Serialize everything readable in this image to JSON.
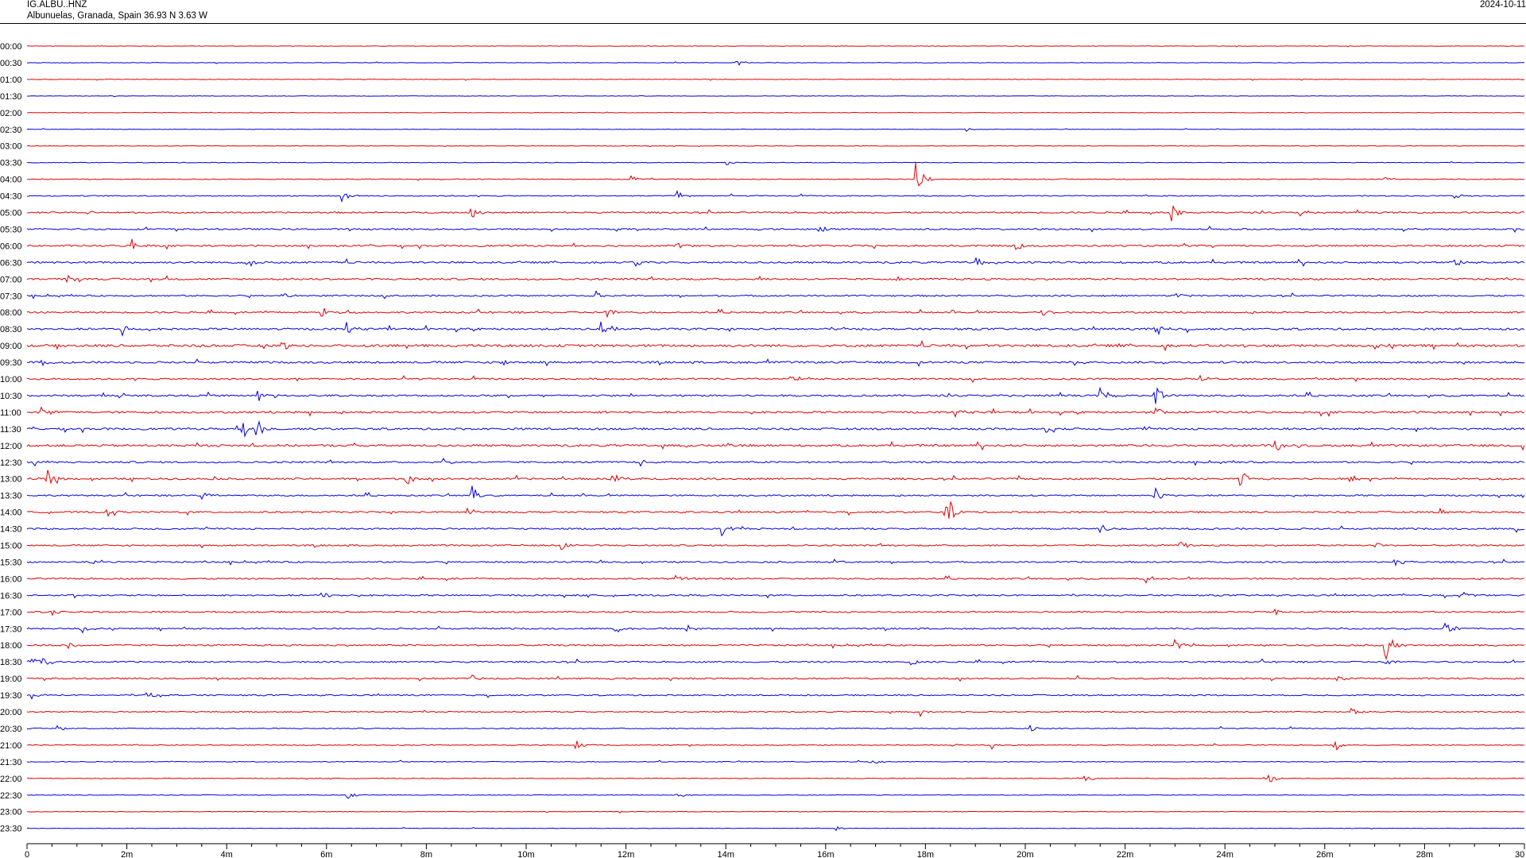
{
  "header": {
    "station": "IG.ALBU..HNZ",
    "location": "Albunuelas, Granada, Spain  36.93 N 3.63 W",
    "date": "2024-10-11"
  },
  "colors": {
    "even_trace": "#e00000",
    "odd_trace": "#0000e0",
    "axis": "#000000"
  },
  "chart_data": {
    "type": "line",
    "description_kind": "helicorder",
    "rows": [
      "00:00",
      "00:30",
      "01:00",
      "01:30",
      "02:00",
      "02:30",
      "03:00",
      "03:30",
      "04:00",
      "04:30",
      "05:00",
      "05:30",
      "06:00",
      "06:30",
      "07:00",
      "07:30",
      "08:00",
      "08:30",
      "09:00",
      "09:30",
      "10:00",
      "10:30",
      "11:00",
      "11:30",
      "12:00",
      "12:30",
      "13:00",
      "13:30",
      "14:00",
      "14:30",
      "15:00",
      "15:30",
      "16:00",
      "16:30",
      "17:00",
      "17:30",
      "18:00",
      "18:30",
      "19:00",
      "19:30",
      "20:00",
      "20:30",
      "21:00",
      "21:30",
      "22:00",
      "22:30",
      "23:00",
      "23:30"
    ],
    "x_ticks": [
      "0",
      "2m",
      "4m",
      "6m",
      "8m",
      "10m",
      "12m",
      "14m",
      "16m",
      "18m",
      "20m",
      "22m",
      "24m",
      "26m",
      "28m",
      "30"
    ],
    "xlim": [
      0,
      30
    ],
    "noise_level": [
      0.3,
      0.3,
      0.3,
      0.3,
      0.3,
      0.3,
      0.35,
      0.4,
      0.5,
      0.6,
      0.9,
      0.9,
      1.0,
      1.1,
      1.1,
      0.9,
      1.0,
      1.2,
      1.5,
      1.2,
      1.0,
      1.1,
      1.2,
      1.2,
      1.3,
      1.0,
      1.1,
      0.9,
      1.0,
      1.0,
      0.9,
      0.9,
      0.9,
      0.9,
      0.9,
      0.9,
      0.9,
      0.9,
      0.9,
      0.8,
      0.7,
      0.6,
      0.5,
      0.45,
      0.4,
      0.4,
      0.35,
      0.3
    ],
    "events": [
      {
        "row": 1,
        "t": 14.2,
        "amp": 6
      },
      {
        "row": 5,
        "t": 18.8,
        "amp": 3
      },
      {
        "row": 7,
        "t": 14.0,
        "amp": 4
      },
      {
        "row": 8,
        "t": 17.8,
        "amp": 26
      },
      {
        "row": 8,
        "t": 12.1,
        "amp": 6
      },
      {
        "row": 8,
        "t": 27.2,
        "amp": 4
      },
      {
        "row": 9,
        "t": 6.3,
        "amp": 8
      },
      {
        "row": 9,
        "t": 13.0,
        "amp": 7
      },
      {
        "row": 9,
        "t": 28.6,
        "amp": 5
      },
      {
        "row": 10,
        "t": 1.2,
        "amp": 5
      },
      {
        "row": 10,
        "t": 8.9,
        "amp": 8
      },
      {
        "row": 10,
        "t": 22.9,
        "amp": 14
      },
      {
        "row": 10,
        "t": 25.5,
        "amp": 6
      },
      {
        "row": 11,
        "t": 15.9,
        "amp": 6
      },
      {
        "row": 11,
        "t": 29.8,
        "amp": 5
      },
      {
        "row": 12,
        "t": 2.1,
        "amp": 9
      },
      {
        "row": 12,
        "t": 13.0,
        "amp": 5
      },
      {
        "row": 12,
        "t": 19.8,
        "amp": 7
      },
      {
        "row": 13,
        "t": 4.4,
        "amp": 9
      },
      {
        "row": 13,
        "t": 12.2,
        "amp": 7
      },
      {
        "row": 13,
        "t": 19.0,
        "amp": 8
      },
      {
        "row": 13,
        "t": 28.6,
        "amp": 7
      },
      {
        "row": 14,
        "t": 0.8,
        "amp": 5
      },
      {
        "row": 14,
        "t": 17.4,
        "amp": 7
      },
      {
        "row": 15,
        "t": 5.1,
        "amp": 6
      },
      {
        "row": 15,
        "t": 11.4,
        "amp": 6
      },
      {
        "row": 15,
        "t": 23.0,
        "amp": 7
      },
      {
        "row": 16,
        "t": 5.9,
        "amp": 10
      },
      {
        "row": 16,
        "t": 11.6,
        "amp": 8
      },
      {
        "row": 16,
        "t": 20.3,
        "amp": 7
      },
      {
        "row": 17,
        "t": 1.9,
        "amp": 9
      },
      {
        "row": 17,
        "t": 6.4,
        "amp": 10
      },
      {
        "row": 17,
        "t": 11.5,
        "amp": 16
      },
      {
        "row": 17,
        "t": 22.6,
        "amp": 10
      },
      {
        "row": 18,
        "t": 5.1,
        "amp": 6
      },
      {
        "row": 18,
        "t": 27.0,
        "amp": 5
      },
      {
        "row": 19,
        "t": 0.3,
        "amp": 6
      },
      {
        "row": 19,
        "t": 9.5,
        "amp": 6
      },
      {
        "row": 19,
        "t": 21.0,
        "amp": 6
      },
      {
        "row": 20,
        "t": 15.3,
        "amp": 7
      },
      {
        "row": 20,
        "t": 23.5,
        "amp": 7
      },
      {
        "row": 21,
        "t": 4.6,
        "amp": 10
      },
      {
        "row": 21,
        "t": 21.5,
        "amp": 13
      },
      {
        "row": 21,
        "t": 22.6,
        "amp": 18
      },
      {
        "row": 22,
        "t": 0.3,
        "amp": 9
      },
      {
        "row": 22,
        "t": 18.6,
        "amp": 8
      },
      {
        "row": 22,
        "t": 22.6,
        "amp": 7
      },
      {
        "row": 23,
        "t": 4.3,
        "amp": 16
      },
      {
        "row": 23,
        "t": 4.6,
        "amp": 18
      },
      {
        "row": 23,
        "t": 20.4,
        "amp": 7
      },
      {
        "row": 24,
        "t": 14.0,
        "amp": 6
      },
      {
        "row": 24,
        "t": 25.0,
        "amp": 9
      },
      {
        "row": 25,
        "t": 0.1,
        "amp": 10
      },
      {
        "row": 25,
        "t": 8.3,
        "amp": 8
      },
      {
        "row": 25,
        "t": 12.3,
        "amp": 6
      },
      {
        "row": 26,
        "t": 0.4,
        "amp": 14
      },
      {
        "row": 26,
        "t": 7.6,
        "amp": 9
      },
      {
        "row": 26,
        "t": 11.7,
        "amp": 10
      },
      {
        "row": 26,
        "t": 24.3,
        "amp": 14
      },
      {
        "row": 26,
        "t": 26.5,
        "amp": 7
      },
      {
        "row": 27,
        "t": 3.5,
        "amp": 7
      },
      {
        "row": 27,
        "t": 8.9,
        "amp": 14
      },
      {
        "row": 27,
        "t": 22.6,
        "amp": 10
      },
      {
        "row": 28,
        "t": 1.6,
        "amp": 6
      },
      {
        "row": 28,
        "t": 8.8,
        "amp": 9
      },
      {
        "row": 28,
        "t": 18.4,
        "amp": 30
      },
      {
        "row": 28,
        "t": 28.3,
        "amp": 7
      },
      {
        "row": 29,
        "t": 13.9,
        "amp": 10
      },
      {
        "row": 29,
        "t": 21.5,
        "amp": 8
      },
      {
        "row": 29,
        "t": 29.8,
        "amp": 6
      },
      {
        "row": 30,
        "t": 10.7,
        "amp": 7
      },
      {
        "row": 30,
        "t": 23.1,
        "amp": 7
      },
      {
        "row": 30,
        "t": 27.0,
        "amp": 6
      },
      {
        "row": 31,
        "t": 1.3,
        "amp": 8
      },
      {
        "row": 31,
        "t": 16.1,
        "amp": 6
      },
      {
        "row": 31,
        "t": 27.4,
        "amp": 6
      },
      {
        "row": 32,
        "t": 13.0,
        "amp": 6
      },
      {
        "row": 32,
        "t": 22.4,
        "amp": 7
      },
      {
        "row": 33,
        "t": 0.9,
        "amp": 6
      },
      {
        "row": 33,
        "t": 5.9,
        "amp": 6
      },
      {
        "row": 33,
        "t": 28.7,
        "amp": 9
      },
      {
        "row": 34,
        "t": 0.5,
        "amp": 6
      },
      {
        "row": 34,
        "t": 25.0,
        "amp": 6
      },
      {
        "row": 35,
        "t": 1.1,
        "amp": 7
      },
      {
        "row": 35,
        "t": 11.8,
        "amp": 7
      },
      {
        "row": 35,
        "t": 13.2,
        "amp": 7
      },
      {
        "row": 35,
        "t": 28.4,
        "amp": 11
      },
      {
        "row": 36,
        "t": 0.8,
        "amp": 6
      },
      {
        "row": 36,
        "t": 23.0,
        "amp": 8
      },
      {
        "row": 36,
        "t": 27.2,
        "amp": 24
      },
      {
        "row": 37,
        "t": 0.1,
        "amp": 8
      },
      {
        "row": 37,
        "t": 0.3,
        "amp": 9
      },
      {
        "row": 37,
        "t": 17.7,
        "amp": 7
      },
      {
        "row": 37,
        "t": 27.2,
        "amp": 6
      },
      {
        "row": 38,
        "t": 8.9,
        "amp": 10
      },
      {
        "row": 38,
        "t": 26.2,
        "amp": 8
      },
      {
        "row": 39,
        "t": 0.1,
        "amp": 6
      },
      {
        "row": 39,
        "t": 2.4,
        "amp": 6
      },
      {
        "row": 40,
        "t": 17.9,
        "amp": 6
      },
      {
        "row": 40,
        "t": 26.5,
        "amp": 8
      },
      {
        "row": 41,
        "t": 0.6,
        "amp": 5
      },
      {
        "row": 41,
        "t": 20.1,
        "amp": 6
      },
      {
        "row": 42,
        "t": 11.0,
        "amp": 8
      },
      {
        "row": 42,
        "t": 19.3,
        "amp": 6
      },
      {
        "row": 42,
        "t": 26.2,
        "amp": 8
      },
      {
        "row": 43,
        "t": 16.9,
        "amp": 5
      },
      {
        "row": 44,
        "t": 21.2,
        "amp": 11
      },
      {
        "row": 44,
        "t": 24.8,
        "amp": 12
      },
      {
        "row": 45,
        "t": 6.4,
        "amp": 5
      },
      {
        "row": 45,
        "t": 13.0,
        "amp": 7
      },
      {
        "row": 46,
        "t": 11.8,
        "amp": 3
      },
      {
        "row": 47,
        "t": 16.2,
        "amp": 4
      }
    ]
  }
}
